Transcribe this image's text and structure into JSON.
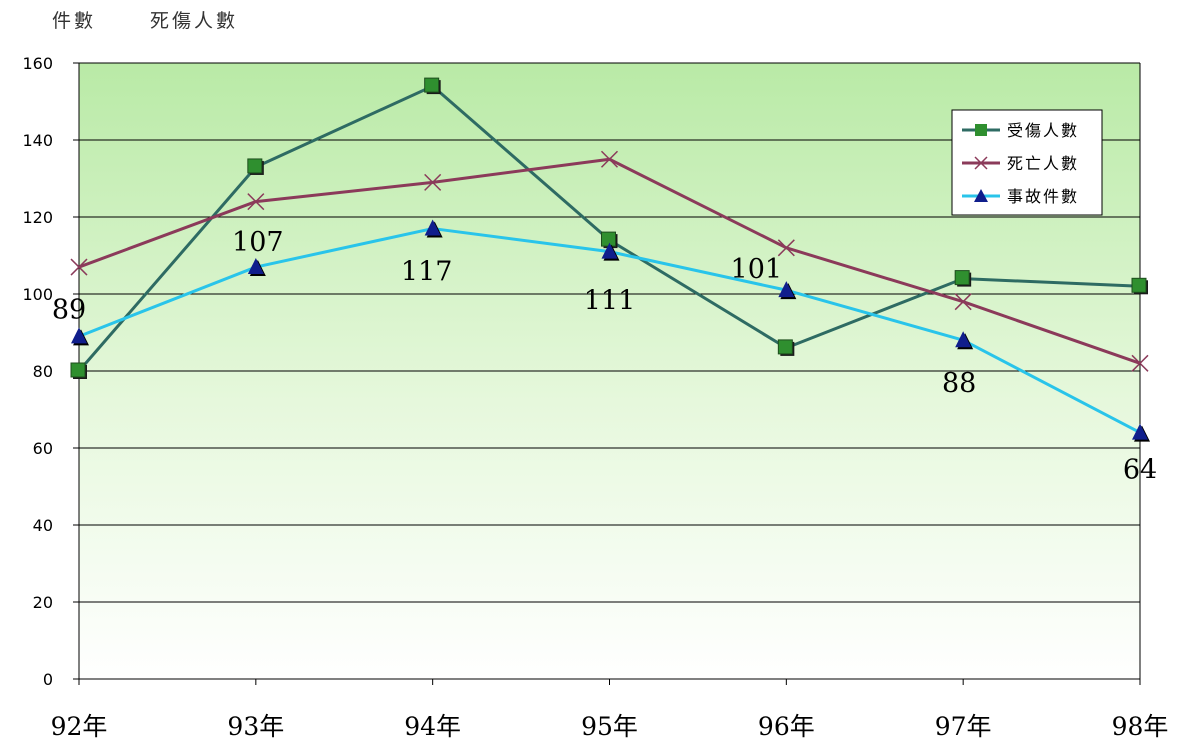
{
  "header": {
    "left_unit": "件數",
    "right_unit": "死傷人數"
  },
  "chart_data": {
    "type": "line",
    "categories": [
      "92年",
      "93年",
      "94年",
      "95年",
      "96年",
      "97年",
      "98年"
    ],
    "ylim": [
      0,
      160
    ],
    "yticks": [
      0,
      20,
      40,
      60,
      80,
      100,
      120,
      140,
      160
    ],
    "grid": true,
    "legend_position": "top-right",
    "series": [
      {
        "name": "受傷人數",
        "values": [
          80,
          133,
          154,
          114,
          86,
          104,
          102
        ],
        "color": "#2e6b63",
        "marker": "square",
        "marker_color": "#2f8f2f"
      },
      {
        "name": "死亡人數",
        "values": [
          107,
          124,
          129,
          135,
          112,
          98,
          82
        ],
        "color": "#8b3a5a",
        "marker": "x",
        "marker_color": "#8b3a5a"
      },
      {
        "name": "事故件數",
        "values": [
          89,
          107,
          117,
          111,
          101,
          88,
          64
        ],
        "color": "#29c4ea",
        "marker": "triangle",
        "marker_color": "#101e8c",
        "data_labels": [
          "89",
          "107",
          "117",
          "111",
          "101",
          "88",
          "64"
        ]
      }
    ]
  }
}
